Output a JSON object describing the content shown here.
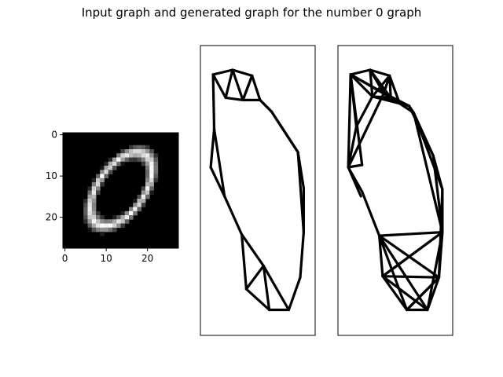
{
  "figure": {
    "title": "Input graph and generated graph for the number 0 graph"
  },
  "chart_data": [
    {
      "type": "heatmap",
      "colormap": "gray",
      "xlim": [
        -0.5,
        27.5
      ],
      "ylim": [
        27.5,
        -0.5
      ],
      "xticks": [
        "0",
        "10",
        "20"
      ],
      "yticks": [
        "0",
        "10",
        "20"
      ],
      "xtick_values": [
        0,
        10,
        20
      ],
      "ytick_values": [
        0,
        10,
        20
      ],
      "shape": "handwritten digit 0"
    },
    {
      "type": "graph",
      "panel": "input graph",
      "axis_ticks": "hidden",
      "xlim": [
        0,
        10
      ],
      "ylim": [
        0,
        25
      ],
      "nodes": [
        [
          1.1,
          22.5
        ],
        [
          2.8,
          22.9
        ],
        [
          4.5,
          22.4
        ],
        [
          3.7,
          20.3
        ],
        [
          2.2,
          20.5
        ],
        [
          5.2,
          20.3
        ],
        [
          6.2,
          19.3
        ],
        [
          8.5,
          15.8
        ],
        [
          9.0,
          12.7
        ],
        [
          9.0,
          8.9
        ],
        [
          8.7,
          5.0
        ],
        [
          7.7,
          2.2
        ],
        [
          6.0,
          2.2
        ],
        [
          5.5,
          6.0
        ],
        [
          4.0,
          4.0
        ],
        [
          3.6,
          8.7
        ],
        [
          2.1,
          12.0
        ],
        [
          0.9,
          14.5
        ],
        [
          1.2,
          17.8
        ]
      ],
      "edges": [
        [
          0,
          1
        ],
        [
          1,
          2
        ],
        [
          2,
          5
        ],
        [
          5,
          6
        ],
        [
          6,
          7
        ],
        [
          7,
          8
        ],
        [
          8,
          9
        ],
        [
          9,
          10
        ],
        [
          10,
          11
        ],
        [
          11,
          12
        ],
        [
          12,
          14
        ],
        [
          14,
          15
        ],
        [
          15,
          16
        ],
        [
          16,
          17
        ],
        [
          17,
          18
        ],
        [
          18,
          0
        ],
        [
          0,
          4
        ],
        [
          1,
          4
        ],
        [
          4,
          3
        ],
        [
          1,
          3
        ],
        [
          3,
          2
        ],
        [
          2,
          3
        ],
        [
          3,
          5
        ],
        [
          5,
          6
        ],
        [
          6,
          7
        ],
        [
          7,
          9
        ],
        [
          13,
          14
        ],
        [
          13,
          12
        ],
        [
          13,
          11
        ],
        [
          15,
          13
        ],
        [
          16,
          18
        ]
      ]
    },
    {
      "type": "graph",
      "panel": "generated graph",
      "axis_ticks": "hidden",
      "xlim": [
        0,
        10
      ],
      "ylim": [
        0,
        25
      ],
      "nodes": [
        [
          1.1,
          22.5
        ],
        [
          2.8,
          22.9
        ],
        [
          4.5,
          22.4
        ],
        [
          3.0,
          20.6
        ],
        [
          4.6,
          20.5
        ],
        [
          6.2,
          19.8
        ],
        [
          6.6,
          19.2
        ],
        [
          8.3,
          15.5
        ],
        [
          9.1,
          12.6
        ],
        [
          9.1,
          8.9
        ],
        [
          8.8,
          5.0
        ],
        [
          7.8,
          2.2
        ],
        [
          6.0,
          2.2
        ],
        [
          3.9,
          5.1
        ],
        [
          3.6,
          8.6
        ],
        [
          2.1,
          12.4
        ],
        [
          2.1,
          14.7
        ],
        [
          0.9,
          14.5
        ],
        [
          2.0,
          12.0
        ],
        [
          1.6,
          18.0
        ],
        [
          4.0,
          20.9
        ],
        [
          5.3,
          20.2
        ]
      ],
      "edges": [
        [
          0,
          1
        ],
        [
          1,
          2
        ],
        [
          0,
          3
        ],
        [
          0,
          4
        ],
        [
          1,
          3
        ],
        [
          1,
          4
        ],
        [
          2,
          3
        ],
        [
          2,
          4
        ],
        [
          3,
          4
        ],
        [
          0,
          20
        ],
        [
          1,
          20
        ],
        [
          2,
          20
        ],
        [
          3,
          21
        ],
        [
          4,
          21
        ],
        [
          2,
          21
        ],
        [
          3,
          5
        ],
        [
          4,
          5
        ],
        [
          20,
          5
        ],
        [
          21,
          5
        ],
        [
          5,
          6
        ],
        [
          4,
          6
        ],
        [
          6,
          7
        ],
        [
          5,
          7
        ],
        [
          7,
          8
        ],
        [
          6,
          8
        ],
        [
          8,
          9
        ],
        [
          7,
          9
        ],
        [
          6,
          9
        ],
        [
          9,
          10
        ],
        [
          8,
          10
        ],
        [
          10,
          11
        ],
        [
          9,
          11
        ],
        [
          11,
          12
        ],
        [
          10,
          12
        ],
        [
          12,
          13
        ],
        [
          11,
          13
        ],
        [
          10,
          13
        ],
        [
          9,
          13
        ],
        [
          12,
          14
        ],
        [
          11,
          14
        ],
        [
          10,
          14
        ],
        [
          9,
          14
        ],
        [
          13,
          14
        ],
        [
          14,
          15
        ],
        [
          0,
          17
        ],
        [
          17,
          15
        ],
        [
          17,
          18
        ],
        [
          0,
          19
        ],
        [
          19,
          17
        ],
        [
          3,
          19
        ],
        [
          20,
          17
        ],
        [
          0,
          16
        ],
        [
          16,
          17
        ],
        [
          12,
          10
        ],
        [
          13,
          9
        ]
      ]
    }
  ]
}
